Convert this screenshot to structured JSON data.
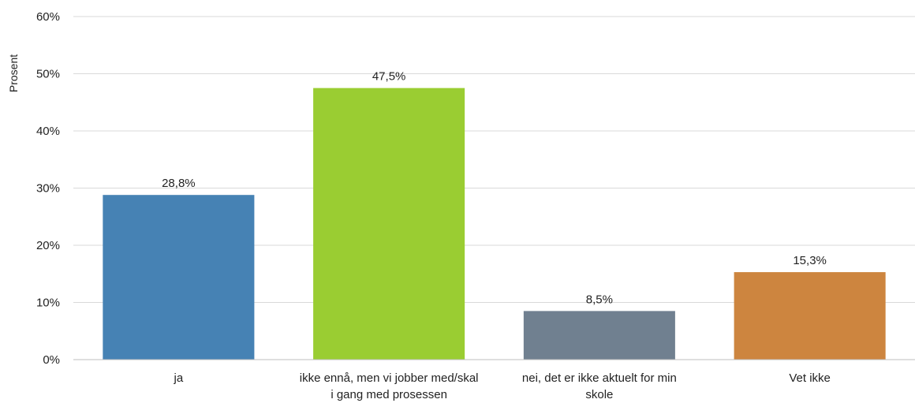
{
  "chart_data": {
    "type": "bar",
    "title": "",
    "xlabel": "",
    "ylabel": "Prosent",
    "ylim": [
      0,
      60
    ],
    "yticks": [
      {
        "value": 0,
        "label": "0%"
      },
      {
        "value": 10,
        "label": "10%"
      },
      {
        "value": 20,
        "label": "20%"
      },
      {
        "value": 30,
        "label": "30%"
      },
      {
        "value": 40,
        "label": "40%"
      },
      {
        "value": 50,
        "label": "50%"
      },
      {
        "value": 60,
        "label": "60%"
      }
    ],
    "grid": true,
    "legend": "none",
    "categories": [
      [
        "ja"
      ],
      [
        "ikke ennå, men vi jobber med/skal",
        "i gang med prosessen"
      ],
      [
        "nei, det er ikke aktuelt for min",
        "skole"
      ],
      [
        "Vet ikke"
      ]
    ],
    "values": [
      28.8,
      47.5,
      8.5,
      15.3
    ],
    "data_labels": [
      "28,8%",
      "47,5%",
      "8,5%",
      "15,3%"
    ],
    "colors": [
      "#4682b4",
      "#9acd32",
      "#708090",
      "#cd853f"
    ]
  }
}
